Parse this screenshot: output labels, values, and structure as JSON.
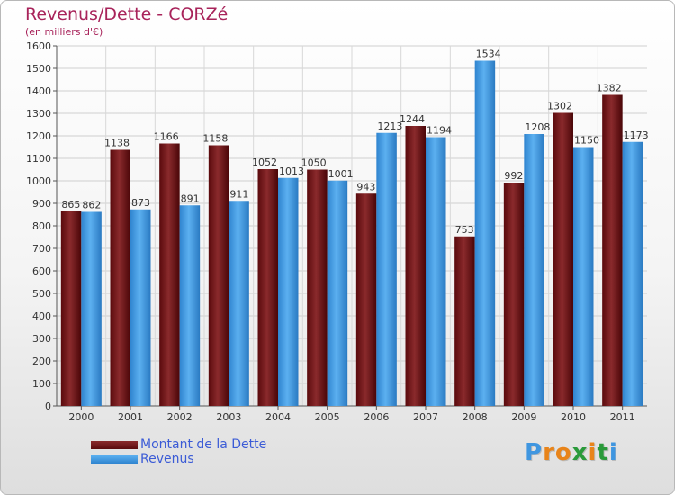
{
  "title": "Revenus/Dette - CORZé",
  "subtitle": "(en milliers d'€)",
  "colors": {
    "series0": "#6e0f12",
    "series1": "#3f96e0"
  },
  "chart_data": {
    "type": "bar",
    "categories": [
      "2000",
      "2001",
      "2002",
      "2003",
      "2004",
      "2005",
      "2006",
      "2007",
      "2008",
      "2009",
      "2010",
      "2011"
    ],
    "series": [
      {
        "name": "Montant de la Dette",
        "values": [
          865,
          1138,
          1166,
          1158,
          1052,
          1050,
          943,
          1244,
          753,
          992,
          1302,
          1382
        ]
      },
      {
        "name": "Revenus",
        "values": [
          862,
          873,
          891,
          911,
          1013,
          1001,
          1213,
          1194,
          1534,
          1208,
          1150,
          1173
        ]
      }
    ],
    "ylim": [
      0,
      1600
    ],
    "yticks": [
      0,
      100,
      200,
      300,
      400,
      500,
      600,
      700,
      800,
      900,
      1000,
      1100,
      1200,
      1300,
      1400,
      1500,
      1600
    ],
    "grid": true,
    "legend_placement": "bottom-left"
  },
  "logo": {
    "letters": [
      "P",
      "r",
      "o",
      "x",
      "i",
      "t",
      "i"
    ],
    "colors": [
      "#3f96e0",
      "#e8841a",
      "#e8841a",
      "#2a9a3a",
      "#e8841a",
      "#2a9a3a",
      "#3f96e0"
    ]
  }
}
